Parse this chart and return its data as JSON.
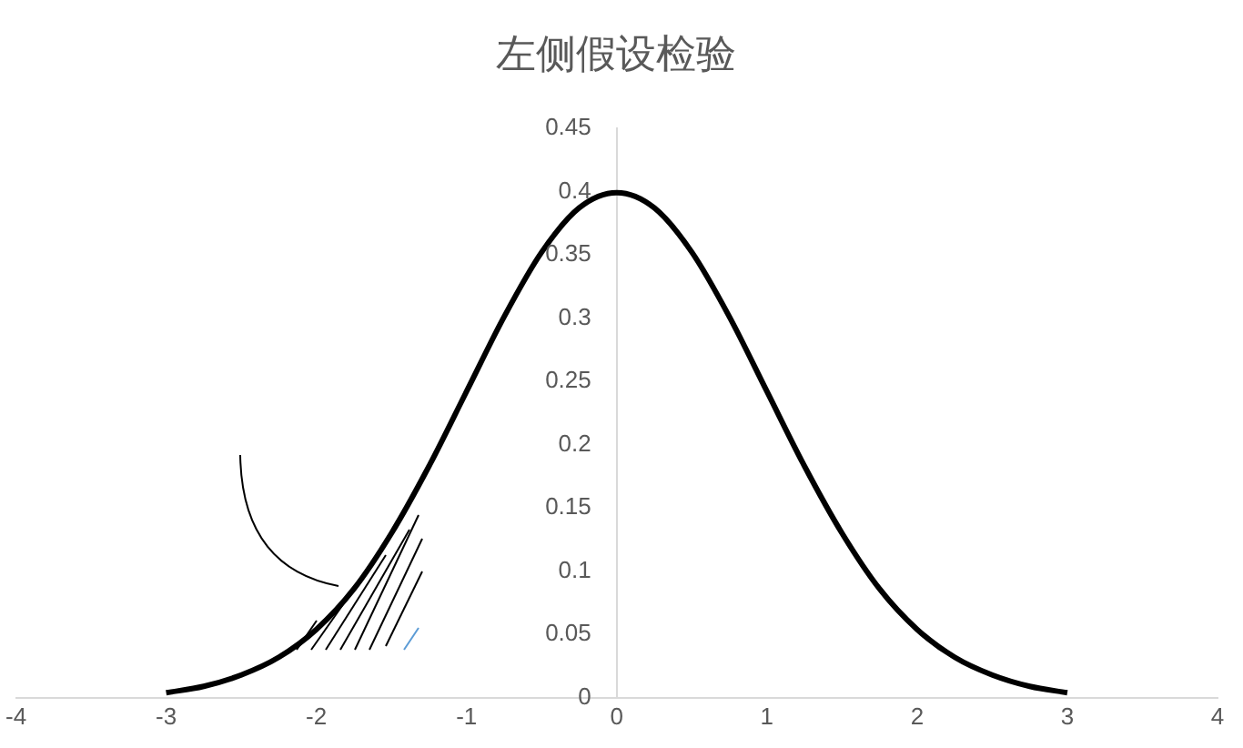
{
  "chart_data": {
    "type": "line",
    "title": "左侧假设检验",
    "x": [
      -3,
      -2.75,
      -2.5,
      -2.25,
      -2,
      -1.75,
      -1.5,
      -1.25,
      -1,
      -0.75,
      -0.5,
      -0.25,
      0,
      0.25,
      0.5,
      0.75,
      1,
      1.25,
      1.5,
      1.75,
      2,
      2.25,
      2.5,
      2.75,
      3
    ],
    "series": [
      {
        "color": "#000000",
        "values": [
          0.004,
          0.009,
          0.018,
          0.032,
          0.054,
          0.086,
          0.13,
          0.183,
          0.242,
          0.301,
          0.352,
          0.387,
          0.399,
          0.387,
          0.352,
          0.301,
          0.242,
          0.183,
          0.13,
          0.086,
          0.054,
          0.032,
          0.018,
          0.009,
          0.004
        ]
      }
    ],
    "xlim": [
      -4,
      4
    ],
    "xticks": [
      -4,
      -3,
      -2,
      -1,
      0,
      1,
      2,
      3,
      4
    ],
    "ylim": [
      0,
      0.45
    ],
    "yticks": [
      0,
      0.05,
      0.1,
      0.15,
      0.2,
      0.25,
      0.3,
      0.35,
      0.4,
      0.45
    ],
    "grid": false,
    "legend": false,
    "marker": "none",
    "line_style": "solid"
  }
}
